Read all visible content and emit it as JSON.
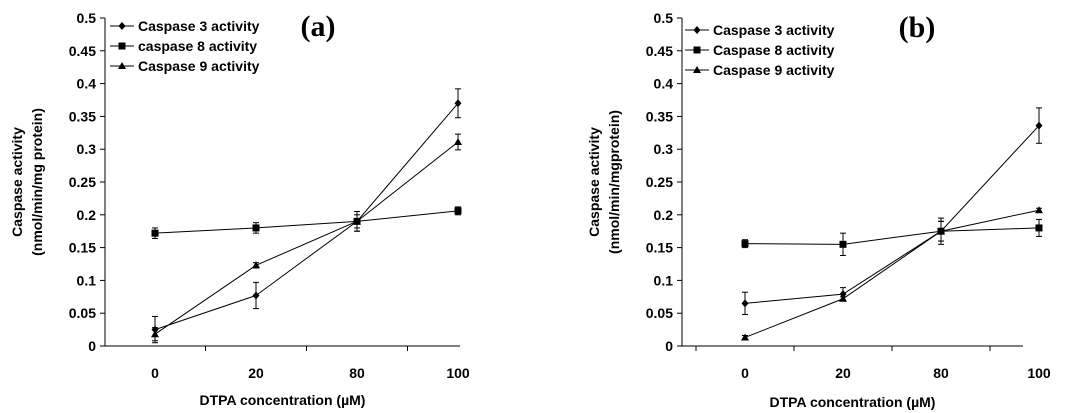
{
  "chart_data": [
    {
      "type": "line",
      "panel_label": "(a)",
      "xlabel": "DTPA concentration (µM)",
      "ylabel": [
        "Caspase activity",
        "(nmol/min/mg protein)"
      ],
      "categories": [
        "0",
        "20",
        "80",
        "100"
      ],
      "ylim": [
        0,
        0.5
      ],
      "yticks": [
        0,
        0.05,
        0.1,
        0.15,
        0.2,
        0.25,
        0.3,
        0.35,
        0.4,
        0.45,
        0.5
      ],
      "ytick_labels": [
        "0",
        "0.05",
        "0.1",
        "0.15",
        "0.2",
        "0.25",
        "0.3",
        "0.35",
        "0.4",
        "0.45",
        "0.5"
      ],
      "grid": false,
      "legend_position": "top-left",
      "series": [
        {
          "name": "Caspase 3 activity",
          "marker": "diamond",
          "values": [
            0.025,
            0.077,
            0.19,
            0.37
          ],
          "errors": [
            0.02,
            0.02,
            0.015,
            0.022
          ]
        },
        {
          "name": "caspase 8 activity",
          "marker": "square",
          "values": [
            0.172,
            0.18,
            0.19,
            0.206
          ],
          "errors": [
            0.008,
            0.008,
            0.01,
            0.006
          ]
        },
        {
          "name": "Caspase 9 activity",
          "marker": "triangle",
          "values": [
            0.018,
            0.123,
            0.19,
            0.311
          ],
          "errors": [
            0.01,
            0.004,
            0.015,
            0.012
          ]
        }
      ]
    },
    {
      "type": "line",
      "panel_label": "(b)",
      "xlabel": "DTPA concentration (µM)",
      "ylabel": [
        "Caspase activity",
        "(nmol/min/mgprotein)"
      ],
      "categories": [
        "0",
        "20",
        "80",
        "100"
      ],
      "ylim": [
        0,
        0.5
      ],
      "yticks": [
        0,
        0.05,
        0.1,
        0.15,
        0.2,
        0.25,
        0.3,
        0.35,
        0.4,
        0.45,
        0.5
      ],
      "ytick_labels": [
        "0",
        "0.05",
        "0.1",
        "0.15",
        "0.2",
        "0.25",
        "0.3",
        "0.35",
        "0.4",
        "0.45",
        "0.5"
      ],
      "grid": false,
      "legend_position": "top-left",
      "series": [
        {
          "name": "Caspase 3 activity",
          "marker": "diamond",
          "values": [
            0.065,
            0.079,
            0.175,
            0.336
          ],
          "errors": [
            0.017,
            0.01,
            0.015,
            0.027
          ]
        },
        {
          "name": "Caspase 8 activity",
          "marker": "square",
          "values": [
            0.156,
            0.155,
            0.175,
            0.18
          ],
          "errors": [
            0.006,
            0.017,
            0.02,
            0.013
          ]
        },
        {
          "name": "Caspase 9 activity",
          "marker": "triangle",
          "values": [
            0.013,
            0.072,
            0.175,
            0.207
          ],
          "errors": [
            0.003,
            0.003,
            0.015,
            0.003
          ]
        }
      ]
    }
  ]
}
